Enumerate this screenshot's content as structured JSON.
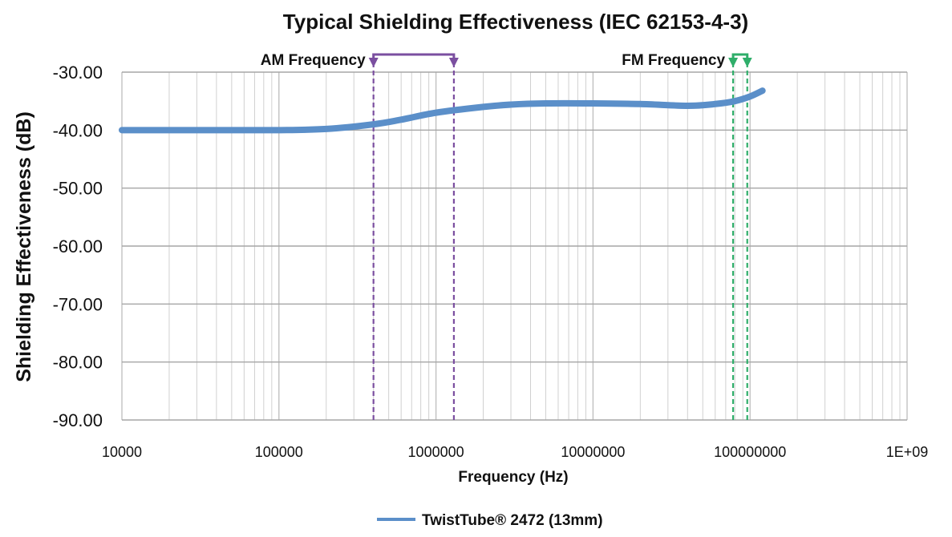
{
  "chart_data": {
    "type": "line",
    "title": "Typical Shielding Effectiveness (IEC 62153-4-3)",
    "xlabel": "Frequency (Hz)",
    "ylabel": "Shielding Effectiveness (dB)",
    "x_scale": "log",
    "xlim": [
      10000,
      1000000000
    ],
    "ylim": [
      -90,
      -30
    ],
    "x_ticks": [
      "10000",
      "100000",
      "1000000",
      "10000000",
      "100000000",
      "1E+09"
    ],
    "y_ticks": [
      "-30.00",
      "-40.00",
      "-50.00",
      "-60.00",
      "-70.00",
      "-80.00",
      "-90.00"
    ],
    "grid": true,
    "legend_position": "bottom",
    "series": [
      {
        "name": "TwistTube® 2472 (13mm)",
        "color": "#5b8fc9",
        "x": [
          10000,
          20000,
          50000,
          100000,
          200000,
          400000,
          600000,
          1000000,
          2000000,
          3000000,
          5000000,
          10000000,
          20000000,
          40000000,
          60000000,
          80000000,
          100000000,
          120000000
        ],
        "y": [
          -40.0,
          -40.0,
          -40.0,
          -40.0,
          -39.8,
          -39.0,
          -38.2,
          -37.0,
          -36.0,
          -35.6,
          -35.4,
          -35.4,
          -35.5,
          -35.8,
          -35.5,
          -35.0,
          -34.2,
          -33.2
        ]
      }
    ],
    "annotations": [
      {
        "label": "AM Frequency",
        "x_start": 400000,
        "x_end": 1300000,
        "color": "#7b4fa0"
      },
      {
        "label": "FM Frequency",
        "x_start": 78000000,
        "x_end": 96000000,
        "color": "#2fae6a"
      }
    ]
  }
}
